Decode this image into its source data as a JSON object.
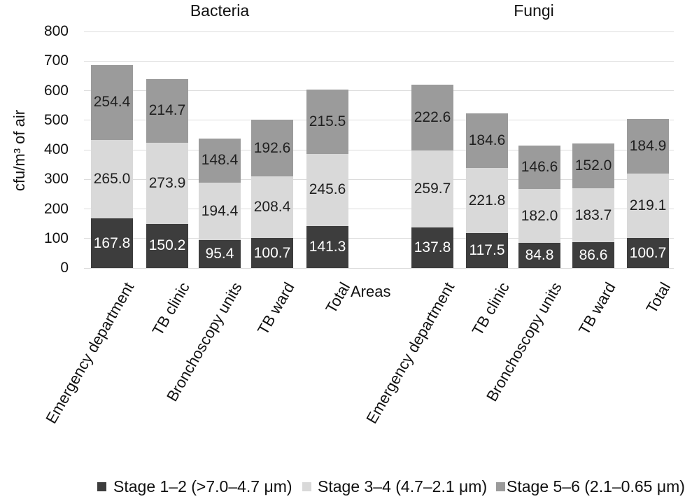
{
  "chart_data": {
    "type": "bar",
    "stacked": true,
    "title_left": "Bacteria",
    "title_right": "Fungi",
    "ylabel": "cfu/m³ of air",
    "xlabel": "Areas",
    "ylim": [
      0,
      800
    ],
    "ytick_step": 100,
    "grid": true,
    "legend_position": "bottom",
    "categories": [
      "Emergency department",
      "TB clinic",
      "Bronchoscopy units",
      "TB ward",
      "Total"
    ],
    "groups": [
      {
        "title": "Bacteria",
        "series": [
          {
            "name": "Stage 1–2 (>7.0–4.7 μm)",
            "values": [
              167.8,
              150.2,
              95.4,
              100.7,
              141.3
            ]
          },
          {
            "name": "Stage 3–4 (4.7–2.1 μm)",
            "values": [
              265.0,
              273.9,
              194.4,
              208.4,
              245.6
            ]
          },
          {
            "name": "Stage 5–6 (2.1–0.65 μm)",
            "values": [
              254.4,
              214.7,
              148.4,
              192.6,
              215.5
            ]
          }
        ]
      },
      {
        "title": "Fungi",
        "series": [
          {
            "name": "Stage 1–2 (>7.0–4.7 μm)",
            "values": [
              137.8,
              117.5,
              84.8,
              86.6,
              100.7
            ]
          },
          {
            "name": "Stage 3–4 (4.7–2.1 μm)",
            "values": [
              259.7,
              221.8,
              182.0,
              183.7,
              219.1
            ]
          },
          {
            "name": "Stage 5–6 (2.1–0.65 μm)",
            "values": [
              222.6,
              184.6,
              146.6,
              152.0,
              184.9
            ]
          }
        ]
      }
    ],
    "legend": [
      {
        "label": "Stage 1–2 (>7.0–4.7 μm)",
        "color": "#3d3d3d"
      },
      {
        "label": "Stage 3–4 (4.7–2.1 μm)",
        "color": "#d9d9d9"
      },
      {
        "label": "Stage 5–6 (2.1–0.65 μm)",
        "color": "#9b9b9b"
      }
    ],
    "colors": {
      "series": [
        "#3d3d3d",
        "#d9d9d9",
        "#9b9b9b"
      ],
      "value_label_colors": [
        "#ffffff",
        "#1f1f1f",
        "#1f1f1f"
      ],
      "gridline": "#dcdcdc",
      "background": "#ffffff"
    }
  }
}
